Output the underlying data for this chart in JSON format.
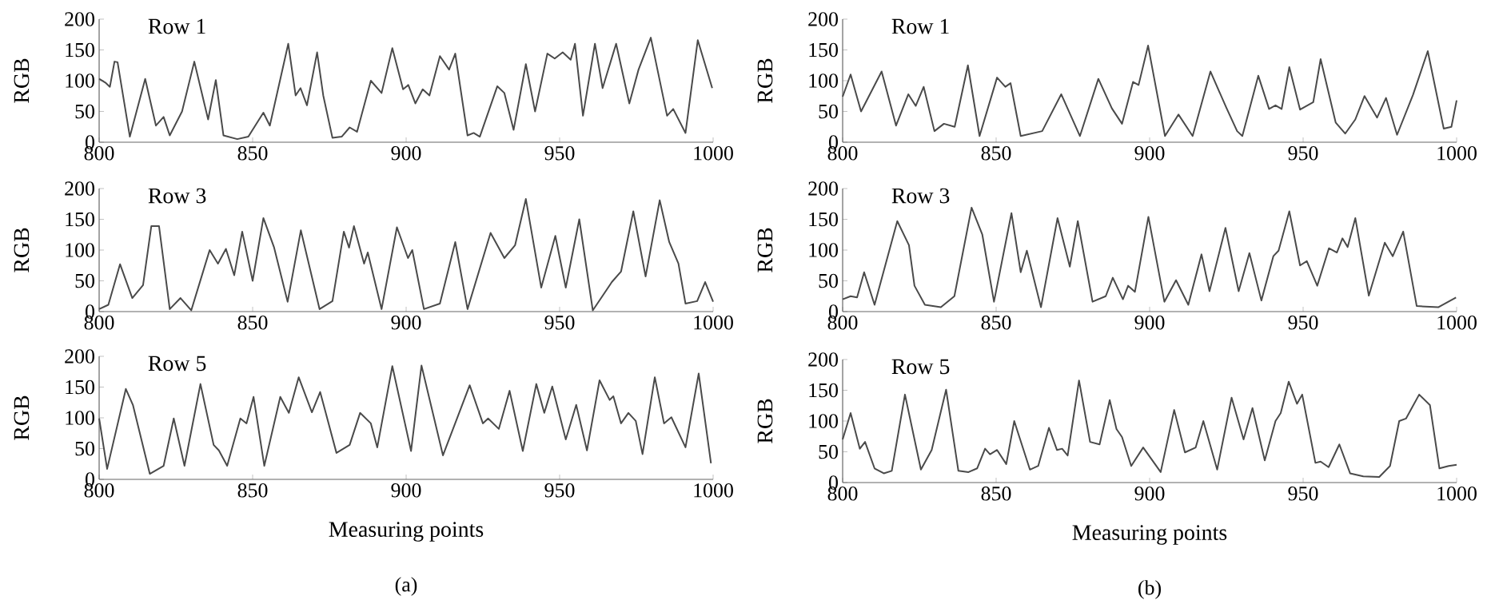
{
  "chart_data": [
    {
      "type": "line",
      "title": "Row 1",
      "ylabel": "RGB",
      "xlim": [
        800,
        1000
      ],
      "xticks": [
        800,
        850,
        900,
        950,
        1000
      ],
      "ylim": [
        0,
        200
      ],
      "yticks": [
        0,
        50,
        100,
        150,
        200
      ],
      "series": [
        {
          "color": "#4a4a4a",
          "x": [
            800,
            802,
            803.5,
            805,
            806,
            810,
            815,
            818.5,
            821,
            823,
            827,
            831,
            835.5,
            838,
            840.5,
            845,
            848.6,
            853.5,
            855.6,
            861.6,
            864,
            865.6,
            867.7,
            871,
            873,
            876,
            879,
            881.6,
            884,
            888.5,
            892,
            895.5,
            899,
            900.7,
            903,
            905.4,
            907.6,
            911,
            914,
            916,
            920,
            922,
            924,
            929.7,
            932,
            935,
            939,
            942,
            946,
            948.4,
            951,
            953.6,
            955,
            957.6,
            961.5,
            964,
            968.4,
            972.7,
            975.7,
            979.7,
            985,
            987,
            991,
            995,
            999.7
          ],
          "values": [
            103,
            97,
            90,
            131,
            130,
            9,
            103,
            27,
            41,
            11,
            50,
            131,
            37,
            101,
            11,
            5,
            9,
            48,
            27,
            160,
            76,
            88,
            60,
            146,
            76,
            7,
            9,
            24,
            17,
            100,
            80,
            153,
            86,
            93,
            63,
            86,
            76,
            140,
            118,
            144,
            11,
            15,
            9,
            91,
            80,
            20,
            127,
            50,
            144,
            136,
            146,
            134,
            160,
            43,
            160,
            88,
            160,
            63,
            118,
            170,
            43,
            54,
            15,
            166,
            88
          ]
        }
      ]
    },
    {
      "type": "line",
      "title": "Row 3",
      "ylabel": "RGB",
      "xlim": [
        800,
        1000
      ],
      "xticks": [
        800,
        850,
        900,
        950,
        1000
      ],
      "ylim": [
        0,
        200
      ],
      "yticks": [
        0,
        50,
        100,
        150,
        200
      ],
      "series": [
        {
          "color": "#4a4a4a",
          "x": [
            800,
            803,
            806.8,
            810.8,
            814.3,
            817,
            819.5,
            823,
            826.5,
            830,
            836,
            838.7,
            841.3,
            844,
            846.6,
            850,
            853.5,
            857,
            861.4,
            865.7,
            871.8,
            876,
            879.7,
            881.4,
            883,
            886.3,
            887.5,
            892,
            897,
            900.6,
            902,
            905.8,
            911,
            916,
            920,
            927.5,
            932,
            935.5,
            939,
            944,
            948.6,
            952,
            956.4,
            960.8,
            967,
            970,
            974,
            978,
            982.6,
            985.7,
            988.7,
            991,
            994.8,
            997.4,
            1000
          ],
          "values": [
            4,
            11,
            77,
            22,
            43,
            139,
            139,
            4,
            22,
            2,
            100,
            78,
            102,
            59,
            130,
            50,
            152,
            104,
            16,
            132,
            4,
            17,
            130,
            104,
            139,
            78,
            96,
            4,
            137,
            87,
            100,
            4,
            13,
            113,
            4,
            128,
            87,
            108,
            183,
            39,
            123,
            39,
            150,
            2,
            48,
            65,
            163,
            57,
            181,
            113,
            78,
            13,
            17,
            48,
            16
          ]
        }
      ]
    },
    {
      "type": "line",
      "title": "Row 5",
      "xlabel": "Measuring points",
      "ylabel": "RGB",
      "xlim": [
        800,
        1000
      ],
      "xticks": [
        800,
        850,
        900,
        950,
        1000
      ],
      "ylim": [
        0,
        200
      ],
      "yticks": [
        0,
        50,
        100,
        150,
        200
      ],
      "annotations": [
        "(a)"
      ],
      "series": [
        {
          "color": "#4a4a4a",
          "x": [
            800,
            802.6,
            808.7,
            811,
            816.5,
            821,
            824.3,
            827.8,
            833,
            837.3,
            839,
            841.7,
            846,
            848,
            850.3,
            853.8,
            859,
            861.8,
            865,
            869.3,
            872,
            877.3,
            881.6,
            885,
            888.5,
            890.6,
            895.5,
            901.6,
            905,
            912,
            920.7,
            925,
            926.7,
            930.2,
            933.7,
            938,
            942.4,
            945,
            947.6,
            952,
            955.4,
            958.9,
            963,
            966.3,
            967.5,
            970,
            972.4,
            974.8,
            977,
            981,
            984,
            986.4,
            991,
            995.3,
            999.3
          ],
          "values": [
            99,
            17,
            147,
            121,
            9,
            22,
            99,
            22,
            155,
            56,
            47,
            22,
            99,
            91,
            134,
            22,
            134,
            108,
            166,
            109,
            142,
            43,
            56,
            108,
            91,
            52,
            184,
            46,
            185,
            39,
            153,
            91,
            99,
            82,
            144,
            46,
            155,
            108,
            151,
            65,
            121,
            47,
            161,
            129,
            135,
            91,
            108,
            95,
            41,
            166,
            91,
            101,
            52,
            172,
            26
          ]
        }
      ]
    },
    {
      "type": "line",
      "title": "Row 1",
      "ylabel": "RGB",
      "xlim": [
        800,
        1000
      ],
      "xticks": [
        800,
        850,
        900,
        950,
        1000
      ],
      "ylim": [
        0,
        200
      ],
      "yticks": [
        0,
        50,
        100,
        150,
        200
      ],
      "series": [
        {
          "color": "#4a4a4a",
          "x": [
            800,
            802.6,
            806,
            812.7,
            817.4,
            821.4,
            823.8,
            826.4,
            829.9,
            833,
            836.5,
            840.8,
            844.6,
            850.3,
            853,
            854.7,
            858,
            865,
            871.2,
            877.3,
            883.3,
            887.7,
            891,
            894.6,
            896.4,
            899.5,
            905,
            909.4,
            914,
            919.8,
            925,
            928.5,
            930.2,
            935.4,
            938.9,
            941,
            943,
            945.5,
            949,
            953.3,
            955.7,
            960.6,
            963.7,
            967,
            970,
            974.1,
            977,
            980.6,
            985.8,
            990.6,
            995.8,
            998.3,
            1000
          ],
          "values": [
            74,
            110,
            50,
            115,
            27,
            78,
            59,
            90,
            18,
            30,
            25,
            125,
            10,
            105,
            90,
            96,
            10,
            18,
            78,
            10,
            103,
            55,
            30,
            98,
            93,
            157,
            10,
            45,
            10,
            115,
            56,
            18,
            10,
            108,
            54,
            60,
            54,
            122,
            53,
            65,
            135,
            32,
            14,
            37,
            75,
            40,
            72,
            12,
            77,
            148,
            22,
            25,
            68
          ]
        }
      ]
    },
    {
      "type": "line",
      "title": "Row 3",
      "ylabel": "RGB",
      "xlim": [
        800,
        1000
      ],
      "xticks": [
        800,
        850,
        900,
        950,
        1000
      ],
      "ylim": [
        0,
        200
      ],
      "yticks": [
        0,
        50,
        100,
        150,
        200
      ],
      "series": [
        {
          "color": "#4a4a4a",
          "x": [
            800,
            802.6,
            804.7,
            807,
            810.4,
            817.8,
            821.6,
            823.4,
            826.8,
            832,
            836.4,
            842,
            845.5,
            849.3,
            855,
            858,
            860,
            864.6,
            870,
            874,
            876.6,
            881.4,
            885.7,
            888,
            891.3,
            893,
            895.2,
            899.6,
            904.8,
            908.6,
            912.6,
            916.9,
            919.5,
            924.7,
            929,
            932.5,
            936.4,
            940.3,
            942,
            945.5,
            949,
            951.2,
            954.6,
            958.4,
            961,
            962.8,
            964.5,
            967,
            971.4,
            976.6,
            979.2,
            982.6,
            987,
            994,
            999.8
          ],
          "values": [
            20,
            25,
            23,
            64,
            11,
            147,
            108,
            42,
            11,
            7,
            25,
            169,
            125,
            16,
            160,
            64,
            99,
            7,
            152,
            73,
            147,
            16,
            25,
            55,
            20,
            42,
            32,
            154,
            16,
            51,
            11,
            93,
            33,
            136,
            33,
            95,
            18,
            90,
            99,
            163,
            75,
            82,
            42,
            103,
            96,
            119,
            105,
            152,
            26,
            112,
            90,
            130,
            9,
            7,
            23
          ]
        }
      ]
    },
    {
      "type": "line",
      "title": "Row 5",
      "xlabel": "Measuring points",
      "ylabel": "RGB",
      "xlim": [
        800,
        1000
      ],
      "xticks": [
        800,
        850,
        900,
        950,
        1000
      ],
      "ylim": [
        0,
        200
      ],
      "yticks": [
        0,
        50,
        100,
        150,
        200
      ],
      "annotations": [
        "(b)"
      ],
      "series": [
        {
          "color": "#4a4a4a",
          "x": [
            800,
            802.6,
            805.6,
            807.3,
            810.4,
            813.4,
            816,
            820.3,
            825.5,
            829,
            833.7,
            837.7,
            841,
            843.8,
            846.4,
            848,
            850.3,
            853.3,
            855.9,
            861,
            863.7,
            867.2,
            869.8,
            871.5,
            873.3,
            877,
            880.6,
            883.7,
            887,
            889.2,
            891,
            894,
            897.9,
            903.6,
            908,
            911.5,
            915,
            917.5,
            922,
            926.7,
            930.6,
            933.5,
            937.5,
            941,
            942.7,
            945.3,
            948,
            949.7,
            954,
            955.7,
            958.3,
            961.8,
            965.3,
            969.6,
            974.8,
            978.3,
            981.3,
            983.5,
            987.8,
            991.3,
            994.4,
            997.4,
            1000
          ],
          "values": [
            70,
            113,
            55,
            66,
            23,
            15,
            19,
            143,
            21,
            53,
            151,
            19,
            17,
            23,
            55,
            46,
            53,
            30,
            100,
            21,
            27,
            89,
            53,
            55,
            44,
            166,
            66,
            62,
            134,
            87,
            74,
            27,
            57,
            17,
            118,
            49,
            57,
            100,
            21,
            138,
            70,
            121,
            36,
            100,
            113,
            164,
            128,
            143,
            32,
            34,
            25,
            62,
            15,
            10,
            9,
            27,
            100,
            104,
            143,
            126,
            23,
            27,
            29
          ]
        }
      ]
    }
  ]
}
